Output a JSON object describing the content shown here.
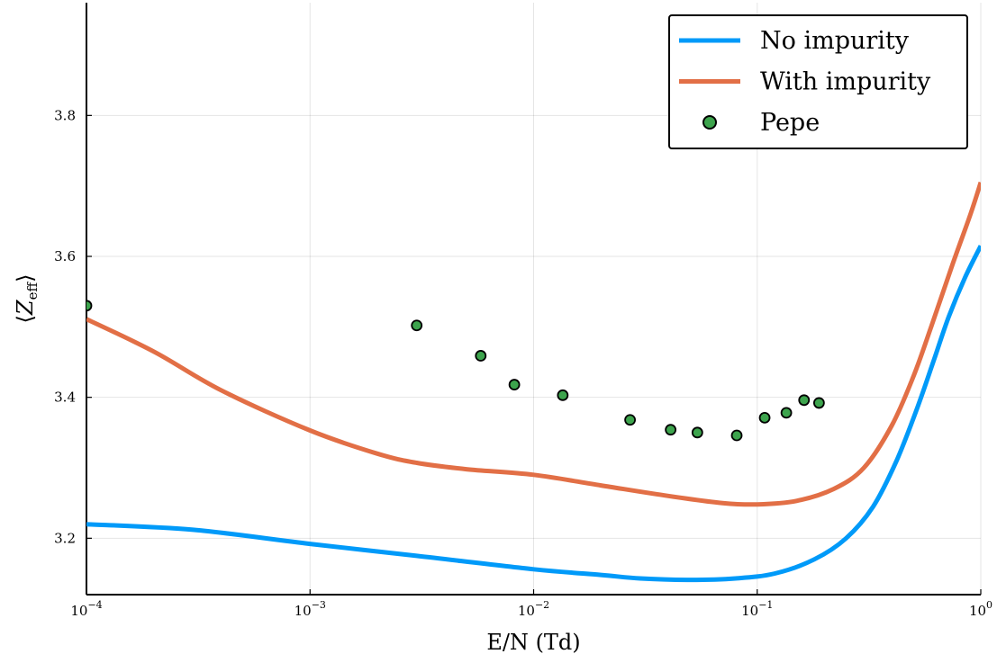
{
  "chart_data": {
    "type": "line",
    "xscale": "log",
    "xlim": [
      0.0001,
      1
    ],
    "ylim": [
      3.12,
      3.96
    ],
    "xlabel": "E/N (Td)",
    "ylabel": {
      "main": "Z",
      "sub": "eff",
      "left": "⟨",
      "right": "⟩"
    },
    "xticks": [
      {
        "value": 0.0001,
        "base": "10",
        "exp": "−4"
      },
      {
        "value": 0.001,
        "base": "10",
        "exp": "−3"
      },
      {
        "value": 0.01,
        "base": "10",
        "exp": "−2"
      },
      {
        "value": 0.1,
        "base": "10",
        "exp": "−1"
      },
      {
        "value": 1,
        "base": "10",
        "exp": "0"
      }
    ],
    "yticks": [
      3.2,
      3.4,
      3.6,
      3.8
    ],
    "yticklabels": [
      "3.2",
      "3.4",
      "3.6",
      "3.8"
    ],
    "grid": true,
    "legend_position": "top-right",
    "series": [
      {
        "name": "No impurity",
        "kind": "line",
        "color": "#009af9",
        "points": [
          [
            0.0001,
            3.22
          ],
          [
            0.0003,
            3.212
          ],
          [
            0.001,
            3.192
          ],
          [
            0.003,
            3.175
          ],
          [
            0.01,
            3.156
          ],
          [
            0.02,
            3.148
          ],
          [
            0.03,
            3.143
          ],
          [
            0.05,
            3.141
          ],
          [
            0.08,
            3.143
          ],
          [
            0.12,
            3.15
          ],
          [
            0.18,
            3.17
          ],
          [
            0.25,
            3.2
          ],
          [
            0.33,
            3.245
          ],
          [
            0.42,
            3.31
          ],
          [
            0.52,
            3.385
          ],
          [
            0.62,
            3.455
          ],
          [
            0.72,
            3.515
          ],
          [
            0.85,
            3.57
          ],
          [
            1,
            3.615
          ]
        ]
      },
      {
        "name": "With impurity",
        "kind": "line",
        "color": "#e26f46",
        "points": [
          [
            0.0001,
            3.511
          ],
          [
            0.0002,
            3.465
          ],
          [
            0.0004,
            3.41
          ],
          [
            0.001,
            3.353
          ],
          [
            0.002,
            3.32
          ],
          [
            0.003,
            3.307
          ],
          [
            0.005,
            3.298
          ],
          [
            0.01,
            3.29
          ],
          [
            0.02,
            3.275
          ],
          [
            0.04,
            3.26
          ],
          [
            0.07,
            3.25
          ],
          [
            0.1,
            3.248
          ],
          [
            0.15,
            3.253
          ],
          [
            0.22,
            3.27
          ],
          [
            0.3,
            3.3
          ],
          [
            0.4,
            3.36
          ],
          [
            0.5,
            3.43
          ],
          [
            0.6,
            3.5
          ],
          [
            0.75,
            3.59
          ],
          [
            0.9,
            3.66
          ],
          [
            1,
            3.705
          ]
        ]
      },
      {
        "name": "Pepe",
        "kind": "scatter",
        "color": "#3da44d",
        "points": [
          [
            0.0001,
            3.53
          ],
          [
            0.003,
            3.502
          ],
          [
            0.0058,
            3.459
          ],
          [
            0.0082,
            3.418
          ],
          [
            0.0135,
            3.403
          ],
          [
            0.027,
            3.368
          ],
          [
            0.041,
            3.354
          ],
          [
            0.054,
            3.35
          ],
          [
            0.081,
            3.346
          ],
          [
            0.108,
            3.371
          ],
          [
            0.135,
            3.378
          ],
          [
            0.162,
            3.396
          ],
          [
            0.189,
            3.392
          ]
        ]
      }
    ]
  }
}
